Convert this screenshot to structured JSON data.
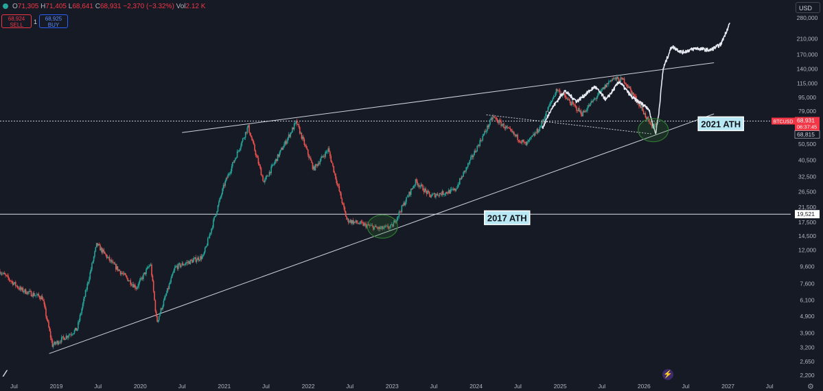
{
  "header": {
    "ohlc": {
      "open_label": "O",
      "open": "71,305",
      "high_label": "H",
      "high": "71,405",
      "low_label": "L",
      "low": "68,641",
      "close_label": "C",
      "close": "68,931",
      "change": "−2,370 (−3.32%)",
      "vol_label": "Vol",
      "vol": "2.12 K"
    },
    "sell": {
      "price": "68,924",
      "label": "SELL"
    },
    "buy": {
      "price": "68,925",
      "label": "BUY"
    },
    "quantity": "1",
    "currency": "USD"
  },
  "colors": {
    "background": "#161a25",
    "up": "#26a69a",
    "down": "#ef5350",
    "projection": "#e8eaf2",
    "annotation_fill": "#b8e8f4",
    "circle": "#2e7d32"
  },
  "chart_data": {
    "type": "candlestick",
    "symbol": "BTCUSD",
    "y_scale": "log",
    "ylim": [
      2100,
      290000
    ],
    "xlim": [
      "2018-05-01",
      "2027-10-01"
    ],
    "y_ticks": [
      280000,
      210000,
      170000,
      140000,
      115000,
      95000,
      79000,
      62000,
      50500,
      40500,
      32500,
      26500,
      21500,
      17500,
      14500,
      12000,
      9600,
      7600,
      6100,
      4900,
      3900,
      3200,
      2650,
      2200
    ],
    "x_ticks": [
      {
        "label": "Jul",
        "date": "2018-07-01"
      },
      {
        "label": "2019",
        "date": "2019-01-01"
      },
      {
        "label": "Jul",
        "date": "2019-07-01"
      },
      {
        "label": "2020",
        "date": "2020-01-01"
      },
      {
        "label": "Jul",
        "date": "2020-07-01"
      },
      {
        "label": "2021",
        "date": "2021-01-01"
      },
      {
        "label": "Jul",
        "date": "2021-07-01"
      },
      {
        "label": "2022",
        "date": "2022-01-01"
      },
      {
        "label": "Jul",
        "date": "2022-07-01"
      },
      {
        "label": "2023",
        "date": "2023-01-01"
      },
      {
        "label": "Jul",
        "date": "2023-07-01"
      },
      {
        "label": "2024",
        "date": "2024-01-01"
      },
      {
        "label": "Jul",
        "date": "2024-07-01"
      },
      {
        "label": "2025",
        "date": "2025-01-01"
      },
      {
        "label": "Jul",
        "date": "2025-07-01"
      },
      {
        "label": "2026",
        "date": "2026-01-01"
      },
      {
        "label": "Jul",
        "date": "2026-07-01"
      },
      {
        "label": "2027",
        "date": "2027-01-01"
      },
      {
        "label": "Jul",
        "date": "2027-07-01"
      }
    ],
    "price_path": [
      [
        "2018-05-01",
        9000
      ],
      [
        "2018-08-01",
        7000
      ],
      [
        "2018-11-01",
        6300
      ],
      [
        "2018-12-15",
        3300
      ],
      [
        "2019-04-01",
        4100
      ],
      [
        "2019-06-26",
        13000
      ],
      [
        "2019-09-01",
        10000
      ],
      [
        "2019-12-15",
        7200
      ],
      [
        "2020-02-15",
        10000
      ],
      [
        "2020-03-13",
        4500
      ],
      [
        "2020-06-01",
        9500
      ],
      [
        "2020-10-01",
        11000
      ],
      [
        "2020-12-31",
        29000
      ],
      [
        "2021-04-14",
        64000
      ],
      [
        "2021-06-22",
        30000
      ],
      [
        "2021-11-10",
        68000
      ],
      [
        "2022-01-24",
        36000
      ],
      [
        "2022-03-29",
        47000
      ],
      [
        "2022-06-18",
        18000
      ],
      [
        "2022-11-09",
        16000
      ],
      [
        "2022-12-31",
        16500
      ],
      [
        "2023-04-14",
        30500
      ],
      [
        "2023-06-15",
        25000
      ],
      [
        "2023-10-01",
        27000
      ],
      [
        "2024-03-14",
        73000
      ],
      [
        "2024-08-05",
        50000
      ],
      [
        "2024-10-01",
        62000
      ],
      [
        "2024-12-17",
        106000
      ],
      [
        "2025-04-07",
        76000
      ],
      [
        "2025-08-14",
        123000
      ],
      [
        "2025-10-06",
        120000
      ],
      [
        "2025-12-15",
        85000
      ],
      [
        "2026-02-05",
        62000
      ],
      [
        "2026-02-25",
        68931
      ]
    ],
    "projection_path": [
      [
        "2024-10-15",
        62000
      ],
      [
        "2024-11-20",
        80000
      ],
      [
        "2025-01-20",
        104000
      ],
      [
        "2025-03-15",
        90000
      ],
      [
        "2025-06-01",
        110000
      ],
      [
        "2025-07-20",
        92000
      ],
      [
        "2025-09-15",
        118000
      ],
      [
        "2025-11-10",
        95000
      ],
      [
        "2026-01-20",
        82000
      ],
      [
        "2026-02-20",
        58000
      ],
      [
        "2026-03-05",
        75000
      ],
      [
        "2026-03-25",
        140000
      ],
      [
        "2026-05-01",
        190000
      ],
      [
        "2026-06-15",
        175000
      ],
      [
        "2026-08-15",
        185000
      ],
      [
        "2026-10-15",
        180000
      ],
      [
        "2026-12-01",
        195000
      ],
      [
        "2027-01-10",
        262000
      ]
    ],
    "horizontal_lines": [
      {
        "price": 68931,
        "label": "2021 ATH"
      },
      {
        "price": 19521,
        "label": "2017 ATH"
      }
    ],
    "trendlines": [
      {
        "points": [
          [
            "2018-12-01",
            2950
          ],
          [
            "2026-11-01",
            76000
          ]
        ]
      },
      {
        "points": [
          [
            "2020-07-01",
            59000
          ],
          [
            "2026-11-01",
            152000
          ]
        ]
      },
      {
        "points": [
          [
            "2024-02-15",
            75000
          ],
          [
            "2026-02-01",
            58000
          ]
        ]
      }
    ],
    "highlight_circles": [
      {
        "date": "2022-11-20",
        "price": 16500
      },
      {
        "date": "2026-02-10",
        "price": 61000
      }
    ],
    "annotations": [
      {
        "text": "2021 ATH",
        "date": "2026-12-01",
        "price": 66500
      },
      {
        "text": "2017 ATH",
        "date": "2024-05-15",
        "price": 18600
      }
    ],
    "price_labels": [
      {
        "symbol": "BTCUSD",
        "price": "68,931",
        "countdown": "06:37:45"
      },
      {
        "price": "68,815"
      },
      {
        "price": "19,521"
      }
    ]
  }
}
